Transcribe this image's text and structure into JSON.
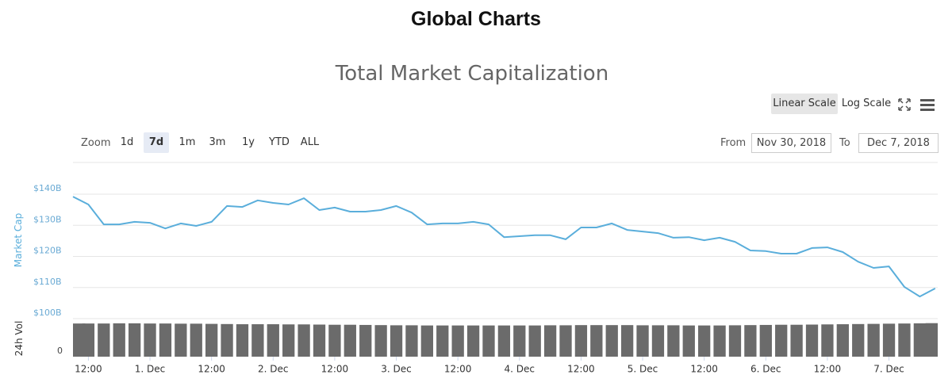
{
  "header": {
    "title": "Global Charts"
  },
  "controls": {
    "scale_buttons": [
      "Linear Scale",
      "Log Scale"
    ],
    "zoom_label": "Zoom",
    "zoom_options": [
      "1d",
      "7d",
      "1m",
      "3m",
      "1y",
      "YTD",
      "ALL"
    ],
    "zoom_selected": 1,
    "from_label": "From",
    "from_value": "Nov 30, 2018",
    "to_label": "To",
    "to_value": "Dec 7, 2018"
  },
  "chart_data": {
    "type": "line",
    "title": "Total Market Capitalization",
    "ylabel": "Market Cap",
    "log_scale": false,
    "grid": true,
    "xlim": [
      9,
      177.5
    ],
    "xticks": [
      {
        "value": 12,
        "label": "12:00"
      },
      {
        "value": 24,
        "label": "1. Dec"
      },
      {
        "value": 36,
        "label": "12:00"
      },
      {
        "value": 48,
        "label": "2. Dec"
      },
      {
        "value": 60,
        "label": "12:00"
      },
      {
        "value": 72,
        "label": "3. Dec"
      },
      {
        "value": 84,
        "label": "12:00"
      },
      {
        "value": 96,
        "label": "4. Dec"
      },
      {
        "value": 108,
        "label": "12:00"
      },
      {
        "value": 120,
        "label": "5. Dec"
      },
      {
        "value": 132,
        "label": "12:00"
      },
      {
        "value": 144,
        "label": "6. Dec"
      },
      {
        "value": 156,
        "label": "12:00"
      },
      {
        "value": 168,
        "label": "7. Dec"
      }
    ],
    "ylim": [
      100,
      140
    ],
    "yticks": [
      {
        "value": 100,
        "label": "$100B"
      },
      {
        "value": 110,
        "label": "$110B"
      },
      {
        "value": 120,
        "label": "$120B"
      },
      {
        "value": 130,
        "label": "$130B"
      },
      {
        "value": 140,
        "label": "$140B"
      }
    ],
    "x": [
      9,
      12,
      15,
      18,
      21,
      24,
      27,
      30,
      33,
      36,
      39,
      42,
      45,
      48,
      51,
      54,
      57,
      60,
      63,
      66,
      69,
      72,
      75,
      78,
      81,
      84,
      87,
      90,
      93,
      96,
      99,
      102,
      105,
      108,
      111,
      114,
      117,
      120,
      123,
      126,
      129,
      132,
      135,
      138,
      141,
      144,
      147,
      150,
      153,
      156,
      159,
      162,
      165,
      168,
      171,
      174,
      177
    ],
    "series": [
      {
        "color": "#5aaedb",
        "values": [
          139.2,
          136.7,
          130.3,
          130.3,
          131.1,
          130.8,
          129.0,
          130.6,
          129.8,
          131.1,
          136.2,
          135.9,
          138.0,
          137.2,
          136.7,
          138.7,
          134.9,
          135.7,
          134.4,
          134.4,
          134.9,
          136.2,
          134.1,
          130.3,
          130.6,
          130.6,
          131.1,
          130.3,
          126.2,
          126.5,
          126.8,
          126.8,
          125.5,
          129.3,
          129.3,
          130.6,
          128.5,
          128.0,
          127.5,
          126.0,
          126.2,
          125.2,
          126.0,
          124.7,
          121.9,
          121.7,
          120.9,
          120.9,
          122.7,
          122.9,
          121.4,
          118.3,
          116.3,
          116.8,
          110.2,
          107.1,
          109.7
        ]
      }
    ],
    "volume": {
      "label": "24h Vol",
      "color": "#6b6b6b",
      "ylim": [
        0,
        20
      ],
      "yticks": [
        0
      ],
      "values": [
        18.6,
        18.6,
        18.6,
        18.7,
        18.7,
        18.6,
        18.6,
        18.5,
        18.5,
        18.4,
        18.3,
        18.2,
        18.2,
        18.2,
        18.1,
        18.1,
        18.0,
        17.9,
        17.9,
        17.8,
        17.7,
        17.6,
        17.6,
        17.5,
        17.5,
        17.5,
        17.5,
        17.5,
        17.5,
        17.5,
        17.5,
        17.6,
        17.6,
        17.7,
        17.7,
        17.7,
        17.7,
        17.6,
        17.6,
        17.6,
        17.5,
        17.5,
        17.5,
        17.6,
        17.7,
        17.8,
        17.9,
        17.9,
        18.0,
        18.1,
        18.2,
        18.3,
        18.4,
        18.5,
        18.6,
        18.7,
        18.8
      ]
    }
  }
}
